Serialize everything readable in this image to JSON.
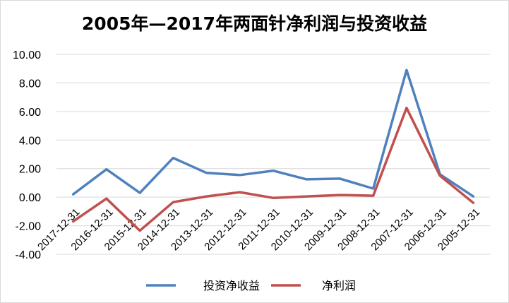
{
  "chart_data": {
    "type": "line",
    "title": "2005年—2017年两面针净利润与投资收益",
    "categories": [
      "2017-12-31",
      "2016-12-31",
      "2015-12-31",
      "2014-12-31",
      "2013-12-31",
      "2012-12-31",
      "2011-12-31",
      "2010-12-31",
      "2009-12-31",
      "2008-12-31",
      "2007-12-31",
      "2006-12-31",
      "2005-12-31"
    ],
    "y_ticks": [
      "10.00",
      "8.00",
      "6.00",
      "4.00",
      "2.00",
      "0.00",
      "-2.00",
      "-4.00"
    ],
    "ylim": [
      -4,
      10
    ],
    "grid": true,
    "legend_position": "bottom",
    "series": [
      {
        "name": "投资净收益",
        "color": "#4f81bd",
        "values": [
          0.2,
          1.95,
          0.3,
          2.75,
          1.7,
          1.55,
          1.85,
          1.25,
          1.3,
          0.6,
          8.9,
          1.6,
          0.05
        ]
      },
      {
        "name": "净利润",
        "color": "#c0504d",
        "values": [
          -1.7,
          -0.1,
          -2.35,
          -0.35,
          0.05,
          0.35,
          -0.05,
          0.05,
          0.15,
          0.1,
          6.25,
          1.5,
          -0.4
        ]
      }
    ]
  }
}
